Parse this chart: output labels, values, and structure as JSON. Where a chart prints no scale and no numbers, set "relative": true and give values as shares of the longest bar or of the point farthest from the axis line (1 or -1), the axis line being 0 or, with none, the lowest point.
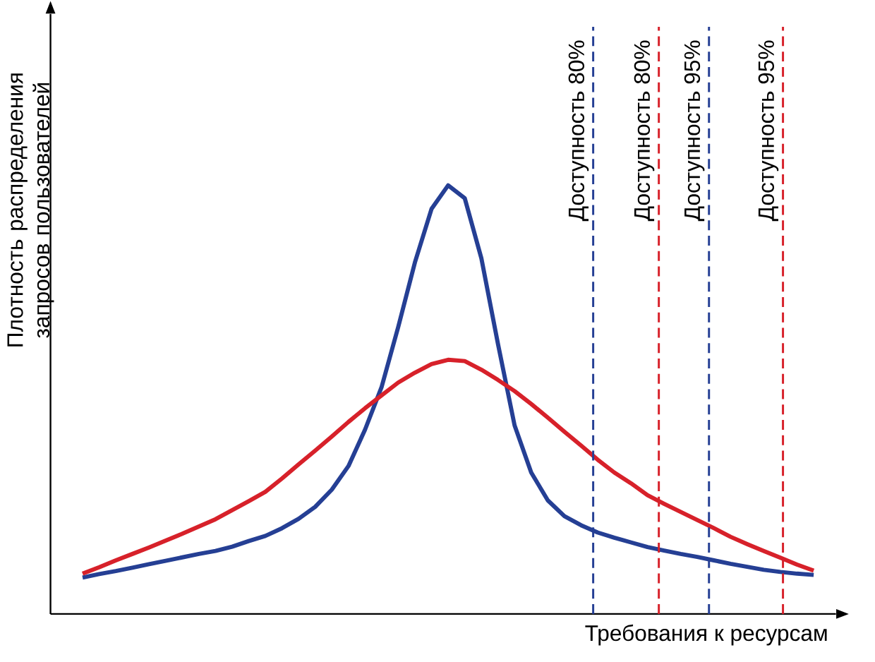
{
  "chart_data": {
    "type": "line",
    "relative": true,
    "xlabel": "Требования к ресурсам",
    "ylabel": "Плотность распределения запросов пользователей",
    "categories": [
      null,
      null,
      null,
      null,
      null,
      null,
      null,
      null,
      null,
      null,
      null,
      null,
      null,
      null,
      null,
      null,
      null,
      null,
      null,
      null,
      null,
      null,
      null,
      null,
      null,
      null,
      null,
      null,
      null,
      null,
      null,
      null,
      null,
      null,
      null,
      null,
      null,
      null,
      null,
      null,
      null,
      null,
      null,
      null,
      null
    ],
    "series": [
      {
        "color": "#253f94",
        "values": [
          0.085,
          0.093,
          0.1,
          0.108,
          0.116,
          0.124,
          0.132,
          0.14,
          0.147,
          0.157,
          0.17,
          0.182,
          0.2,
          0.222,
          0.25,
          0.29,
          0.345,
          0.43,
          0.53,
          0.67,
          0.82,
          0.945,
          1,
          0.97,
          0.83,
          0.63,
          0.44,
          0.33,
          0.265,
          0.228,
          0.207,
          0.19,
          0.178,
          0.167,
          0.156,
          0.148,
          0.14,
          0.133,
          0.125,
          0.117,
          0.11,
          0.103,
          0.098,
          0.094,
          0.091
        ]
      },
      {
        "color": "#d7212a",
        "values": [
          0.094,
          0.109,
          0.125,
          0.14,
          0.155,
          0.171,
          0.187,
          0.204,
          0.221,
          0.242,
          0.263,
          0.285,
          0.316,
          0.349,
          0.381,
          0.414,
          0.448,
          0.48,
          0.51,
          0.54,
          0.563,
          0.583,
          0.593,
          0.59,
          0.57,
          0.546,
          0.52,
          0.49,
          0.458,
          0.425,
          0.393,
          0.36,
          0.33,
          0.305,
          0.277,
          0.257,
          0.238,
          0.219,
          0.2,
          0.18,
          0.163,
          0.147,
          0.131,
          0.115,
          0.101
        ]
      }
    ],
    "ref_lines": [
      {
        "axis": "x",
        "label": "Доступность 80%",
        "color": "#253f94",
        "line_style": "dashed"
      },
      {
        "axis": "x",
        "label": "Доступность 80%",
        "color": "#d7212a",
        "line_style": "dashed"
      },
      {
        "axis": "x",
        "label": "Доступность 95%",
        "color": "#253f94",
        "line_style": "dashed"
      },
      {
        "axis": "x",
        "label": "Доступность 95%",
        "color": "#d7212a",
        "line_style": "dashed"
      }
    ]
  }
}
